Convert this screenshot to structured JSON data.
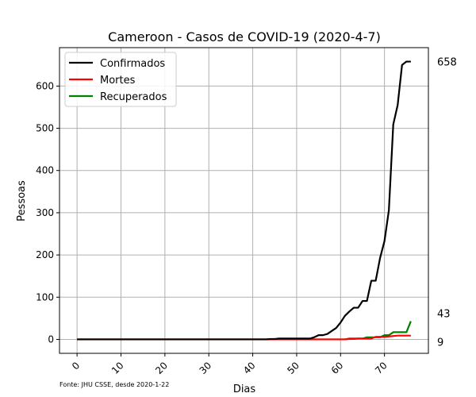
{
  "chart_data": {
    "type": "line",
    "title": "Cameroon - Casos de COVID-19 (2020-4-7)",
    "xlabel": "Dias",
    "ylabel": "Pessoas",
    "source_note": "Fonte: JHU CSSE, desde 2020-1-22",
    "xlim": [
      -4,
      80
    ],
    "ylim": [
      -33,
      691
    ],
    "x_ticks": [
      0,
      10,
      20,
      30,
      40,
      50,
      60,
      70
    ],
    "y_ticks": [
      0,
      100,
      200,
      300,
      400,
      500,
      600
    ],
    "grid": true,
    "legend_position": "upper-left",
    "final_values": [
      "658",
      "43",
      "9"
    ],
    "series": [
      {
        "name": "Confirmados",
        "color": "#000000",
        "points": [
          [
            0,
            0
          ],
          [
            43,
            0
          ],
          [
            44,
            1
          ],
          [
            45,
            1
          ],
          [
            46,
            2
          ],
          [
            52,
            2
          ],
          [
            53,
            2
          ],
          [
            54,
            5
          ],
          [
            55,
            10
          ],
          [
            56,
            10
          ],
          [
            57,
            13
          ],
          [
            58,
            20
          ],
          [
            59,
            27
          ],
          [
            60,
            40
          ],
          [
            61,
            56
          ],
          [
            62,
            66
          ],
          [
            63,
            75
          ],
          [
            64,
            75
          ],
          [
            65,
            91
          ],
          [
            66,
            91
          ],
          [
            67,
            139
          ],
          [
            68,
            139
          ],
          [
            69,
            193
          ],
          [
            70,
            233
          ],
          [
            71,
            306
          ],
          [
            72,
            509
          ],
          [
            73,
            555
          ],
          [
            74,
            650
          ],
          [
            75,
            658
          ],
          [
            76,
            658
          ]
        ]
      },
      {
        "name": "Mortes",
        "color": "#ff0000",
        "points": [
          [
            0,
            0
          ],
          [
            61,
            0
          ],
          [
            62,
            1
          ],
          [
            63,
            1
          ],
          [
            64,
            2
          ],
          [
            67,
            2
          ],
          [
            68,
            6
          ],
          [
            69,
            6
          ],
          [
            70,
            6
          ],
          [
            71,
            7
          ],
          [
            72,
            8
          ],
          [
            73,
            9
          ],
          [
            76,
            9
          ]
        ]
      },
      {
        "name": "Recuperados",
        "color": "#008000",
        "points": [
          [
            0,
            0
          ],
          [
            61,
            0
          ],
          [
            62,
            2
          ],
          [
            65,
            2
          ],
          [
            66,
            5
          ],
          [
            69,
            5
          ],
          [
            70,
            10
          ],
          [
            71,
            10
          ],
          [
            72,
            17
          ],
          [
            75,
            17
          ],
          [
            76,
            43
          ]
        ]
      }
    ]
  }
}
